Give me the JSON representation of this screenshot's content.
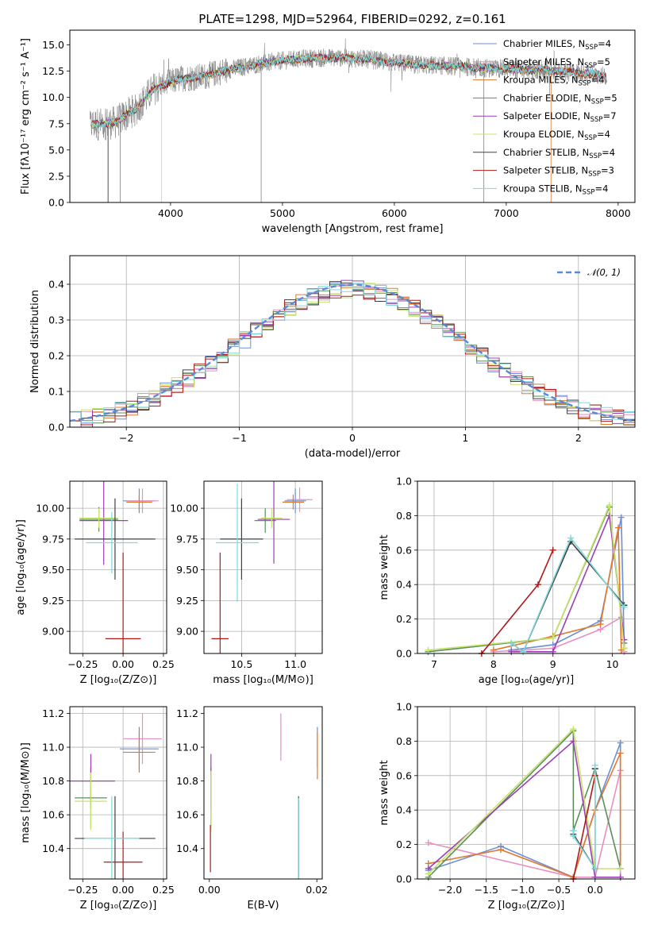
{
  "chart_data": [
    {
      "id": "spectrum",
      "type": "line",
      "title": "PLATE=1298, MJD=52964, FIBERID=0292, z=0.161",
      "xlabel": "wavelength [Angstrom, rest frame]",
      "ylabel": "Flux [fλ10⁻¹⁷ erg cm⁻² s⁻¹ A⁻¹]",
      "xlim": [
        3100,
        8150
      ],
      "ylim": [
        0,
        16.4
      ],
      "xticks": [
        4000,
        5000,
        6000,
        7000,
        8000
      ],
      "yticks": [
        0.0,
        2.5,
        5.0,
        7.5,
        10.0,
        12.5,
        15.0
      ],
      "grid": false,
      "legend_position": "top-right",
      "observed_color": "#808080",
      "continuum": [
        [
          3280,
          7.4
        ],
        [
          3500,
          7.6
        ],
        [
          3700,
          9.0
        ],
        [
          3850,
          10.8
        ],
        [
          3950,
          11.3
        ],
        [
          4100,
          11.8
        ],
        [
          4300,
          12.0
        ],
        [
          4500,
          12.6
        ],
        [
          4800,
          13.2
        ],
        [
          5000,
          13.5
        ],
        [
          5200,
          13.7
        ],
        [
          5500,
          13.8
        ],
        [
          5800,
          13.6
        ],
        [
          6000,
          13.3
        ],
        [
          6200,
          13.1
        ],
        [
          6500,
          13.0
        ],
        [
          6800,
          12.8
        ],
        [
          7000,
          12.7
        ],
        [
          7300,
          12.6
        ],
        [
          7600,
          12.4
        ],
        [
          7800,
          12.2
        ],
        [
          7900,
          12.0
        ]
      ],
      "series": [
        {
          "name": "Chabrier MILES, N",
          "sub": "SSP",
          "tail": "=4",
          "color": "#6a8fd6"
        },
        {
          "name": "Salpeter MILES, N",
          "sub": "SSP",
          "tail": "=5",
          "color": "#e88fc2"
        },
        {
          "name": "Kroupa MILES, N",
          "sub": "SSP",
          "tail": "=4",
          "color": "#e0792e"
        },
        {
          "name": "Chabrier ELODIE, N",
          "sub": "SSP",
          "tail": "=5",
          "color": "#5a8f5a"
        },
        {
          "name": "Salpeter ELODIE, N",
          "sub": "SSP",
          "tail": "=7",
          "color": "#9c3fb5"
        },
        {
          "name": "Kroupa ELODIE, N",
          "sub": "SSP",
          "tail": "=4",
          "color": "#c8e36a"
        },
        {
          "name": "Chabrier STELIB, N",
          "sub": "SSP",
          "tail": "=4",
          "color": "#404040"
        },
        {
          "name": "Salpeter STELIB, N",
          "sub": "SSP",
          "tail": "=3",
          "color": "#b01818"
        },
        {
          "name": "Kroupa STELIB, N",
          "sub": "SSP",
          "tail": "=4",
          "color": "#7fd8dc"
        }
      ]
    },
    {
      "id": "residuals",
      "type": "line",
      "xlabel": "(data-model)/error",
      "ylabel": "Normed distribution",
      "xlim": [
        -2.5,
        2.5
      ],
      "ylim": [
        0,
        0.48
      ],
      "xticks": [
        -2,
        -1,
        0,
        1,
        2
      ],
      "yticks": [
        0.0,
        0.1,
        0.2,
        0.3,
        0.4
      ],
      "grid": true,
      "legend_position": "top-right",
      "gaussian_label": "𝒩(0, 1)",
      "gaussian_color": "#5a8ad6",
      "bin_width": 0.1
    },
    {
      "id": "age-vs-Z",
      "type": "scatter",
      "xlabel": "Z [log₁₀(Z/Z⊙)]",
      "ylabel": "age  [log₁₀(age/yr)]",
      "xlim": [
        -0.33,
        0.27
      ],
      "ylim": [
        8.82,
        10.22
      ],
      "xticks": [
        -0.25,
        0.0,
        0.25
      ],
      "xticklabels": [
        "−0.25",
        "0.00",
        "0.25"
      ],
      "yticks": [
        9.0,
        9.25,
        9.5,
        9.75,
        10.0
      ],
      "yticklabels": [
        "9.00",
        "9.25",
        "9.50",
        "9.75",
        "10.00"
      ],
      "grid": true,
      "points": [
        {
          "x": 0.1,
          "xerr": 0.1,
          "y": 10.06,
          "yerr": 0.1,
          "color": "#6a8fd6"
        },
        {
          "x": 0.12,
          "xerr": 0.1,
          "y": 10.06,
          "yerr": 0.1,
          "color": "#e88fc2"
        },
        {
          "x": 0.1,
          "xerr": 0.08,
          "y": 10.05,
          "yerr": 0.06,
          "color": "#e0792e"
        },
        {
          "x": -0.15,
          "xerr": 0.12,
          "y": 9.91,
          "yerr": 0.1,
          "color": "#5a8f5a"
        },
        {
          "x": -0.12,
          "xerr": 0.15,
          "y": 9.9,
          "yerr": 0.36,
          "color": "#9c3fb5"
        },
        {
          "x": -0.15,
          "xerr": 0.12,
          "y": 9.92,
          "yerr": 0.08,
          "color": "#c8e36a"
        },
        {
          "x": -0.05,
          "xerr": 0.25,
          "y": 9.75,
          "yerr": 0.33,
          "color": "#404040"
        },
        {
          "x": 0.0,
          "xerr": 0.11,
          "y": 8.94,
          "yerr": 0.7,
          "color": "#b01818"
        },
        {
          "x": -0.07,
          "xerr": 0.16,
          "y": 9.72,
          "yerr": 0.25,
          "color": "#7fd8dc"
        }
      ]
    },
    {
      "id": "age-vs-mass",
      "type": "scatter",
      "xlabel": "mass [log₁₀(M/M⊙)]",
      "xlim": [
        10.15,
        11.25
      ],
      "ylim": [
        8.82,
        10.22
      ],
      "xticks": [
        10.5,
        11.0
      ],
      "xticklabels": [
        "10.5",
        "11.0"
      ],
      "yticks": [
        9.0,
        9.25,
        9.5,
        9.75,
        10.0
      ],
      "yticklabels": [
        "9.00",
        "9.25",
        "9.50",
        "9.75",
        "10.00"
      ],
      "grid": true,
      "points": [
        {
          "x": 11.0,
          "xerr": 0.1,
          "y": 10.06,
          "yerr": 0.1,
          "color": "#6a8fd6"
        },
        {
          "x": 11.04,
          "xerr": 0.12,
          "y": 10.07,
          "yerr": 0.1,
          "color": "#e88fc2"
        },
        {
          "x": 10.98,
          "xerr": 0.1,
          "y": 10.05,
          "yerr": 0.06,
          "color": "#e0792e"
        },
        {
          "x": 10.72,
          "xerr": 0.1,
          "y": 9.9,
          "yerr": 0.1,
          "color": "#5a8f5a"
        },
        {
          "x": 10.8,
          "xerr": 0.15,
          "y": 9.91,
          "yerr": 0.36,
          "color": "#9c3fb5"
        },
        {
          "x": 10.78,
          "xerr": 0.1,
          "y": 9.92,
          "yerr": 0.08,
          "color": "#c8e36a"
        },
        {
          "x": 10.5,
          "xerr": 0.2,
          "y": 9.75,
          "yerr": 0.33,
          "color": "#404040"
        },
        {
          "x": 10.3,
          "xerr": 0.08,
          "y": 8.94,
          "yerr": 0.7,
          "color": "#b01818"
        },
        {
          "x": 10.46,
          "xerr": 0.2,
          "y": 9.72,
          "yerr": 0.48,
          "color": "#7fd8dc"
        }
      ]
    },
    {
      "id": "mass-weight-vs-age",
      "type": "line",
      "xlabel": "age  [log₁₀(age/yr)]",
      "ylabel": "mass weight",
      "xlim": [
        6.72,
        10.38
      ],
      "ylim": [
        0,
        1.0
      ],
      "xticks": [
        7,
        8,
        9,
        10
      ],
      "yticks": [
        0.0,
        0.2,
        0.4,
        0.6,
        0.8,
        1.0
      ],
      "grid": true,
      "series": [
        {
          "color": "#6a8fd6",
          "x": [
            8.3,
            9.0,
            9.8,
            10.15,
            10.2
          ],
          "y": [
            0.02,
            0.05,
            0.19,
            0.79,
            0.03
          ]
        },
        {
          "color": "#e88fc2",
          "x": [
            8.0,
            9.0,
            9.8,
            10.15,
            10.2
          ],
          "y": [
            0.01,
            0.03,
            0.14,
            0.21,
            0.01
          ]
        },
        {
          "color": "#e0792e",
          "x": [
            8.0,
            9.0,
            9.8,
            10.1,
            10.15
          ],
          "y": [
            0.02,
            0.1,
            0.17,
            0.73,
            0.02
          ]
        },
        {
          "color": "#5a8f5a",
          "x": [
            6.9,
            9.0,
            9.95,
            10.2
          ],
          "y": [
            0.01,
            0.09,
            0.85,
            0.06
          ]
        },
        {
          "color": "#9c3fb5",
          "x": [
            8.3,
            9.0,
            9.95,
            10.2
          ],
          "y": [
            0.01,
            0.01,
            0.8,
            0.08
          ]
        },
        {
          "color": "#c8e36a",
          "x": [
            6.9,
            9.0,
            9.95,
            10.2
          ],
          "y": [
            0.02,
            0.09,
            0.86,
            0.03
          ]
        },
        {
          "color": "#404040",
          "x": [
            8.3,
            8.5,
            9.3,
            10.2
          ],
          "y": [
            0.06,
            0.01,
            0.65,
            0.28
          ]
        },
        {
          "color": "#b01818",
          "x": [
            7.8,
            8.75,
            9.0
          ],
          "y": [
            0.0,
            0.4,
            0.6
          ]
        },
        {
          "color": "#7fd8dc",
          "x": [
            8.3,
            8.5,
            9.3,
            10.2
          ],
          "y": [
            0.06,
            0.01,
            0.67,
            0.27
          ]
        }
      ]
    },
    {
      "id": "mass-vs-Z",
      "type": "scatter",
      "xlabel": "Z [log₁₀(Z/Z⊙)]",
      "ylabel": "mass [log₁₀(M/M⊙)]",
      "xlim": [
        -0.33,
        0.27
      ],
      "ylim": [
        10.22,
        11.24
      ],
      "xticks": [
        -0.25,
        0.0,
        0.25
      ],
      "xticklabels": [
        "−0.25",
        "0.00",
        "0.25"
      ],
      "yticks": [
        10.4,
        10.6,
        10.8,
        11.0,
        11.2
      ],
      "yticklabels": [
        "10.4",
        "10.6",
        "10.8",
        "11.0",
        "11.2"
      ],
      "grid": true,
      "points": [
        {
          "x": 0.1,
          "xerr": 0.12,
          "y": 10.99,
          "yerr": 0.13,
          "color": "#6a8fd6"
        },
        {
          "x": 0.12,
          "xerr": 0.12,
          "y": 11.05,
          "yerr": 0.15,
          "color": "#e88fc2"
        },
        {
          "x": 0.1,
          "xerr": 0.1,
          "y": 10.97,
          "yerr": 0.12,
          "color": "#e0792e"
        },
        {
          "x": -0.2,
          "xerr": 0.1,
          "y": 10.7,
          "yerr": 0.18,
          "color": "#5a8f5a"
        },
        {
          "x": -0.2,
          "xerr": 0.15,
          "y": 10.8,
          "yerr": 0.16,
          "color": "#9c3fb5"
        },
        {
          "x": -0.2,
          "xerr": 0.1,
          "y": 10.68,
          "yerr": 0.17,
          "color": "#c8e36a"
        },
        {
          "x": -0.05,
          "xerr": 0.25,
          "y": 10.46,
          "yerr": 0.25,
          "color": "#404040"
        },
        {
          "x": 0.0,
          "xerr": 0.12,
          "y": 10.32,
          "yerr": 0.18,
          "color": "#b01818"
        },
        {
          "x": -0.07,
          "xerr": 0.17,
          "y": 10.46,
          "yerr": 0.25,
          "color": "#7fd8dc"
        }
      ]
    },
    {
      "id": "mass-vs-ebv",
      "type": "scatter",
      "xlabel": "E(B-V)",
      "xlim": [
        -0.001,
        0.021
      ],
      "ylim": [
        10.22,
        11.24
      ],
      "xticks": [
        0.0,
        0.02
      ],
      "xticklabels": [
        "0.00",
        "0.02"
      ],
      "yticks": [
        10.4,
        10.6,
        10.8,
        11.0,
        11.2
      ],
      "yticklabels": [
        "10.4",
        "10.6",
        "10.8",
        "11.0",
        "11.2"
      ],
      "grid": false,
      "points": [
        {
          "x": 0.0201,
          "xerr": 0,
          "y": 11.0,
          "yerr": 0.12,
          "color": "#6a8fd6"
        },
        {
          "x": 0.0133,
          "xerr": 0,
          "y": 11.06,
          "yerr": 0.14,
          "color": "#e88fc2"
        },
        {
          "x": 0.0201,
          "xerr": 0,
          "y": 10.95,
          "yerr": 0.14,
          "color": "#e0792e"
        },
        {
          "x": 0.0003,
          "xerr": 0,
          "y": 10.7,
          "yerr": 0.18,
          "color": "#5a8f5a"
        },
        {
          "x": 0.0003,
          "xerr": 0,
          "y": 10.8,
          "yerr": 0.16,
          "color": "#9c3fb5"
        },
        {
          "x": 0.0003,
          "xerr": 0,
          "y": 10.68,
          "yerr": 0.18,
          "color": "#c8e36a"
        },
        {
          "x": 0.0166,
          "xerr": 0,
          "y": 10.46,
          "yerr": 0.25,
          "color": "#404040"
        },
        {
          "x": 0.0002,
          "xerr": 0,
          "y": 10.4,
          "yerr": 0.14,
          "color": "#b01818"
        },
        {
          "x": 0.0166,
          "xerr": 0,
          "y": 10.46,
          "yerr": 0.24,
          "color": "#7fd8dc"
        }
      ]
    },
    {
      "id": "mass-weight-vs-Z",
      "type": "line",
      "xlabel": "Z [log₁₀(Z/Z⊙)]",
      "ylabel": "mass weight",
      "xlim": [
        -2.45,
        0.55
      ],
      "ylim": [
        0,
        1.0
      ],
      "xticks": [
        -2.0,
        -1.5,
        -1.0,
        -0.5,
        0.0
      ],
      "xticklabels": [
        "−2.0",
        "−1.5",
        "−1.0",
        "−0.5",
        "0.0"
      ],
      "yticks": [
        0.0,
        0.2,
        0.4,
        0.6,
        0.8,
        1.0
      ],
      "grid": true,
      "series": [
        {
          "color": "#6a8fd6",
          "x": [
            -2.3,
            -1.3,
            -0.3,
            0.0,
            0.35,
            0.35
          ],
          "y": [
            0.05,
            0.19,
            0.01,
            0.4,
            0.79,
            0.01
          ]
        },
        {
          "color": "#e88fc2",
          "x": [
            -2.3,
            -0.3,
            0.0,
            0.35,
            0.35
          ],
          "y": [
            0.21,
            0.01,
            0.01,
            0.63,
            0.01
          ]
        },
        {
          "color": "#e0792e",
          "x": [
            -2.3,
            -1.3,
            -0.3,
            0.0,
            0.35,
            0.35
          ],
          "y": [
            0.09,
            0.17,
            0.01,
            0.4,
            0.73,
            0.06
          ]
        },
        {
          "color": "#5a8f5a",
          "x": [
            -2.3,
            -0.3,
            -0.3,
            0.0,
            0.35
          ],
          "y": [
            0.01,
            0.86,
            0.28,
            0.64,
            0.06
          ]
        },
        {
          "color": "#9c3fb5",
          "x": [
            -2.3,
            -0.3,
            0.0,
            0.0,
            0.35
          ],
          "y": [
            0.06,
            0.8,
            0.01,
            0.01,
            0.01
          ]
        },
        {
          "color": "#c8e36a",
          "x": [
            -2.3,
            -0.3,
            0.0,
            0.35
          ],
          "y": [
            0.03,
            0.87,
            0.06,
            0.06
          ]
        },
        {
          "color": "#404040",
          "x": [
            -0.3,
            -0.3,
            0.0,
            0.0
          ],
          "y": [
            0.28,
            0.26,
            0.06,
            0.64
          ]
        },
        {
          "color": "#b01818",
          "x": [
            -0.3,
            0.0
          ],
          "y": [
            0.0,
            0.6
          ]
        },
        {
          "color": "#7fd8dc",
          "x": [
            -0.3,
            -0.3,
            0.0,
            0.0
          ],
          "y": [
            0.28,
            0.25,
            0.06,
            0.66
          ]
        }
      ]
    }
  ]
}
